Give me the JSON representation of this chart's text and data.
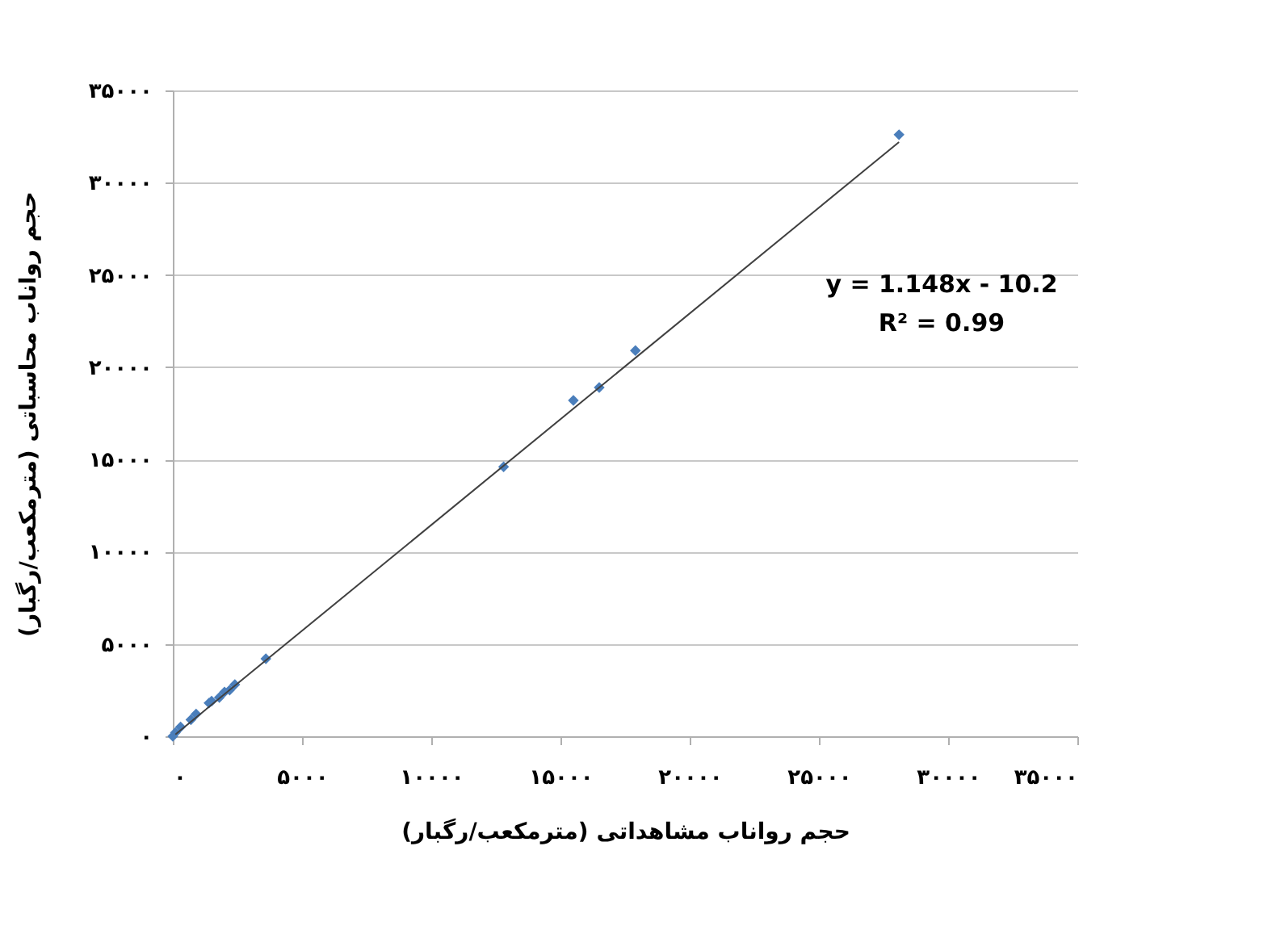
{
  "chart_data": {
    "type": "scatter",
    "xlabel": "حجم رواناب مشاهداتی (مترمکعب/رگبار)",
    "ylabel": "حجم رواناب محاسباتی (مترمکعب/رگبار)",
    "annotations": [
      "y = 1.148x - 10.2",
      "R² = 0.99"
    ],
    "series": [
      {
        "color": "#4a7ebb",
        "marker": "diamond",
        "x": [
          0,
          100,
          300,
          700,
          900,
          1400,
          1500,
          1800,
          2000,
          2200,
          2400,
          3600,
          12800,
          15500,
          16500,
          17900,
          28100
        ],
        "values": [
          0,
          200,
          500,
          900,
          1200,
          1800,
          1900,
          2100,
          2400,
          2500,
          2800,
          4200,
          14600,
          18200,
          18900,
          20900,
          32600
        ]
      },
      {
        "type": "line",
        "color": "#404040",
        "line_style": "solid",
        "x": [
          100,
          28100
        ],
        "values": [
          100,
          32200
        ]
      }
    ],
    "xlim": [
      0,
      35000
    ],
    "ylim": [
      0,
      35000
    ],
    "xticks": [
      {
        "value": 0,
        "label": "۰"
      },
      {
        "value": 5000,
        "label": "۵۰۰۰"
      },
      {
        "value": 10000,
        "label": "۱۰۰۰۰"
      },
      {
        "value": 15000,
        "label": "۱۵۰۰۰"
      },
      {
        "value": 20000,
        "label": "۲۰۰۰۰"
      },
      {
        "value": 25000,
        "label": "۲۵۰۰۰"
      },
      {
        "value": 30000,
        "label": "۳۰۰۰۰"
      },
      {
        "value": 35000,
        "label": "۳۵۰۰۰"
      }
    ],
    "yticks": [
      {
        "value": 0,
        "label": "۰"
      },
      {
        "value": 5000,
        "label": "۵۰۰۰"
      },
      {
        "value": 10000,
        "label": "۱۰۰۰۰"
      },
      {
        "value": 15000,
        "label": "۱۵۰۰۰"
      },
      {
        "value": 20000,
        "label": "۲۰۰۰۰"
      },
      {
        "value": 25000,
        "label": "۲۵۰۰۰"
      },
      {
        "value": 30000,
        "label": "۳۰۰۰۰"
      },
      {
        "value": 35000,
        "label": "۳۵۰۰۰"
      }
    ],
    "grid": "y"
  }
}
